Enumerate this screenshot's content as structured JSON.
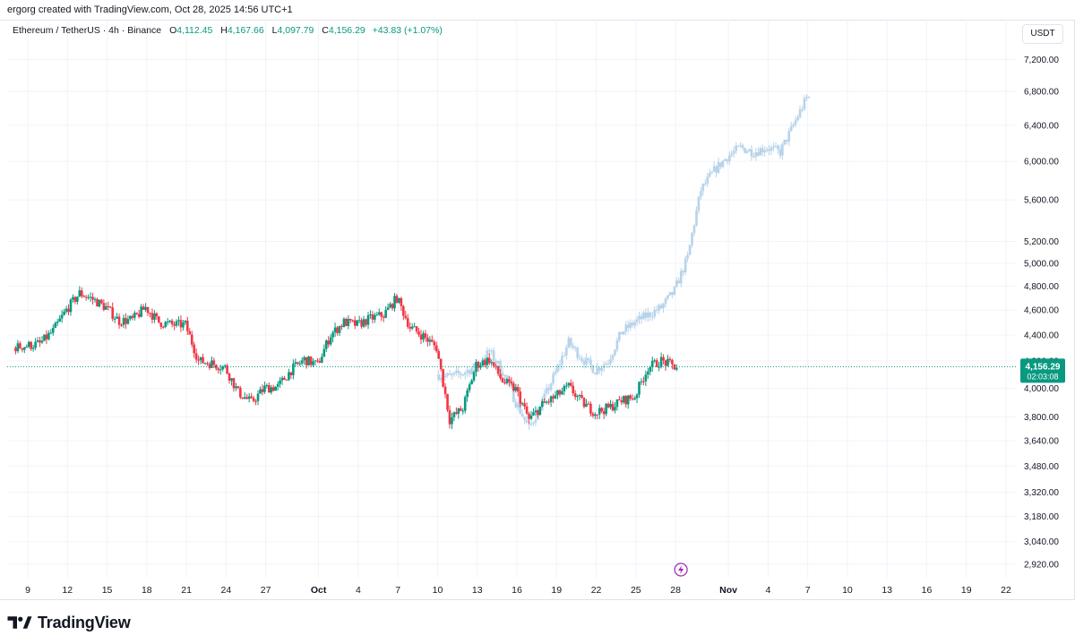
{
  "header": {
    "credit": "ergorg created with TradingView.com, Oct 28, 2025 14:56 UTC+1"
  },
  "legend": {
    "symbol": "Ethereum / TetherUS · 4h · Binance",
    "open_label": "O",
    "open": "4,112.45",
    "high_label": "H",
    "high": "4,167.66",
    "low_label": "L",
    "low": "4,097.79",
    "close_label": "C",
    "close": "4,156.29",
    "change": "+43.83 (+1.07%)"
  },
  "currency": "USDT",
  "price_tag": {
    "price": "4,156.29",
    "countdown": "02:03:08"
  },
  "footer": {
    "brand": "TradingView"
  },
  "colors": {
    "up": "#089981",
    "down": "#f23645",
    "projection": "#b7d3ea",
    "tag": "#089981",
    "event": "#9c27b0"
  },
  "icons": {
    "event_marker": "lightning-event-icon",
    "logo": "tradingview-logo-icon"
  },
  "chart_data": {
    "type": "candlestick",
    "title": "",
    "xlabel": "",
    "ylabel": "",
    "ylim": [
      2850,
      7450
    ],
    "grid": true,
    "y_scale": "log",
    "y_ticks": [
      2920,
      3040,
      3180,
      3320,
      3480,
      3640,
      3800,
      4000,
      4200,
      4400,
      4600,
      4800,
      5000,
      5200,
      5600,
      6000,
      6400,
      6800,
      7200
    ],
    "y_tick_labels": [
      "2,920.00",
      "3,040.00",
      "3,180.00",
      "3,320.00",
      "3,480.00",
      "3,640.00",
      "3,800.00",
      "4,000.00",
      "4,200.00",
      "4,400.00",
      "4,600.00",
      "4,800.00",
      "5,000.00",
      "5,200.00",
      "5,600.00",
      "6,000.00",
      "6,400.00",
      "6,800.00",
      "7,200.00"
    ],
    "x_ticks": [
      {
        "date": "2025-09-09",
        "label": "9"
      },
      {
        "date": "2025-09-12",
        "label": "12"
      },
      {
        "date": "2025-09-15",
        "label": "15"
      },
      {
        "date": "2025-09-18",
        "label": "18"
      },
      {
        "date": "2025-09-21",
        "label": "21"
      },
      {
        "date": "2025-09-24",
        "label": "24"
      },
      {
        "date": "2025-09-27",
        "label": "27"
      },
      {
        "date": "2025-10-01",
        "label": "Oct"
      },
      {
        "date": "2025-10-04",
        "label": "4"
      },
      {
        "date": "2025-10-07",
        "label": "7"
      },
      {
        "date": "2025-10-10",
        "label": "10"
      },
      {
        "date": "2025-10-13",
        "label": "13"
      },
      {
        "date": "2025-10-16",
        "label": "16"
      },
      {
        "date": "2025-10-19",
        "label": "19"
      },
      {
        "date": "2025-10-22",
        "label": "22"
      },
      {
        "date": "2025-10-25",
        "label": "25"
      },
      {
        "date": "2025-10-28",
        "label": "28"
      },
      {
        "date": "2025-11-01",
        "label": "Nov"
      },
      {
        "date": "2025-11-04",
        "label": "4"
      },
      {
        "date": "2025-11-07",
        "label": "7"
      },
      {
        "date": "2025-11-10",
        "label": "10"
      },
      {
        "date": "2025-11-13",
        "label": "13"
      },
      {
        "date": "2025-11-16",
        "label": "16"
      },
      {
        "date": "2025-11-19",
        "label": "19"
      },
      {
        "date": "2025-11-22",
        "label": "22"
      }
    ],
    "last_price": 4156.29,
    "series": [
      {
        "name": "ETH/USDT",
        "keypoints": [
          [
            "2025-09-08",
            4300
          ],
          [
            "2025-09-10",
            4330
          ],
          [
            "2025-09-11",
            4430
          ],
          [
            "2025-09-12",
            4600
          ],
          [
            "2025-09-13",
            4740
          ],
          [
            "2025-09-14",
            4690
          ],
          [
            "2025-09-15",
            4620
          ],
          [
            "2025-09-16",
            4510
          ],
          [
            "2025-09-17",
            4520
          ],
          [
            "2025-09-18",
            4620
          ],
          [
            "2025-09-19",
            4500
          ],
          [
            "2025-09-20",
            4480
          ],
          [
            "2025-09-21",
            4480
          ],
          [
            "2025-09-22",
            4200
          ],
          [
            "2025-09-23",
            4180
          ],
          [
            "2025-09-24",
            4150
          ],
          [
            "2025-09-25",
            3970
          ],
          [
            "2025-09-26",
            3900
          ],
          [
            "2025-09-27",
            4000
          ],
          [
            "2025-09-28",
            4010
          ],
          [
            "2025-09-29",
            4130
          ],
          [
            "2025-09-30",
            4210
          ],
          [
            "2025-10-01",
            4170
          ],
          [
            "2025-10-02",
            4400
          ],
          [
            "2025-10-03",
            4500
          ],
          [
            "2025-10-04",
            4480
          ],
          [
            "2025-10-05",
            4530
          ],
          [
            "2025-10-06",
            4560
          ],
          [
            "2025-10-07",
            4700
          ],
          [
            "2025-10-08",
            4460
          ],
          [
            "2025-10-09",
            4390
          ],
          [
            "2025-10-10",
            4300
          ],
          [
            "2025-10-11",
            3780
          ],
          [
            "2025-10-12",
            3860
          ],
          [
            "2025-10-13",
            4170
          ],
          [
            "2025-10-14",
            4210
          ],
          [
            "2025-10-15",
            4050
          ],
          [
            "2025-10-16",
            3990
          ],
          [
            "2025-10-17",
            3780
          ],
          [
            "2025-10-18",
            3880
          ],
          [
            "2025-10-19",
            3940
          ],
          [
            "2025-10-20",
            4010
          ],
          [
            "2025-10-21",
            3900
          ],
          [
            "2025-10-22",
            3830
          ],
          [
            "2025-10-23",
            3860
          ],
          [
            "2025-10-24",
            3910
          ],
          [
            "2025-10-25",
            3940
          ],
          [
            "2025-10-26",
            4150
          ],
          [
            "2025-10-27",
            4200
          ],
          [
            "2025-10-28",
            4156
          ]
        ]
      },
      {
        "name": "Projection",
        "keypoints": [
          [
            "2025-10-10",
            4100
          ],
          [
            "2025-10-11",
            4080
          ],
          [
            "2025-10-12",
            4110
          ],
          [
            "2025-10-13",
            4160
          ],
          [
            "2025-10-14",
            4270
          ],
          [
            "2025-10-15",
            4120
          ],
          [
            "2025-10-16",
            3900
          ],
          [
            "2025-10-17",
            3720
          ],
          [
            "2025-10-18",
            3900
          ],
          [
            "2025-10-19",
            4110
          ],
          [
            "2025-10-20",
            4340
          ],
          [
            "2025-10-21",
            4220
          ],
          [
            "2025-10-22",
            4130
          ],
          [
            "2025-10-23",
            4200
          ],
          [
            "2025-10-24",
            4420
          ],
          [
            "2025-10-25",
            4500
          ],
          [
            "2025-10-26",
            4560
          ],
          [
            "2025-10-27",
            4620
          ],
          [
            "2025-10-28",
            4760
          ],
          [
            "2025-10-29",
            5050
          ],
          [
            "2025-10-30",
            5700
          ],
          [
            "2025-10-31",
            5900
          ],
          [
            "2025-11-01",
            6050
          ],
          [
            "2025-11-02",
            6150
          ],
          [
            "2025-11-03",
            6100
          ],
          [
            "2025-11-04",
            6150
          ],
          [
            "2025-11-05",
            6100
          ],
          [
            "2025-11-06",
            6400
          ],
          [
            "2025-11-07",
            6720
          ]
        ]
      }
    ]
  }
}
